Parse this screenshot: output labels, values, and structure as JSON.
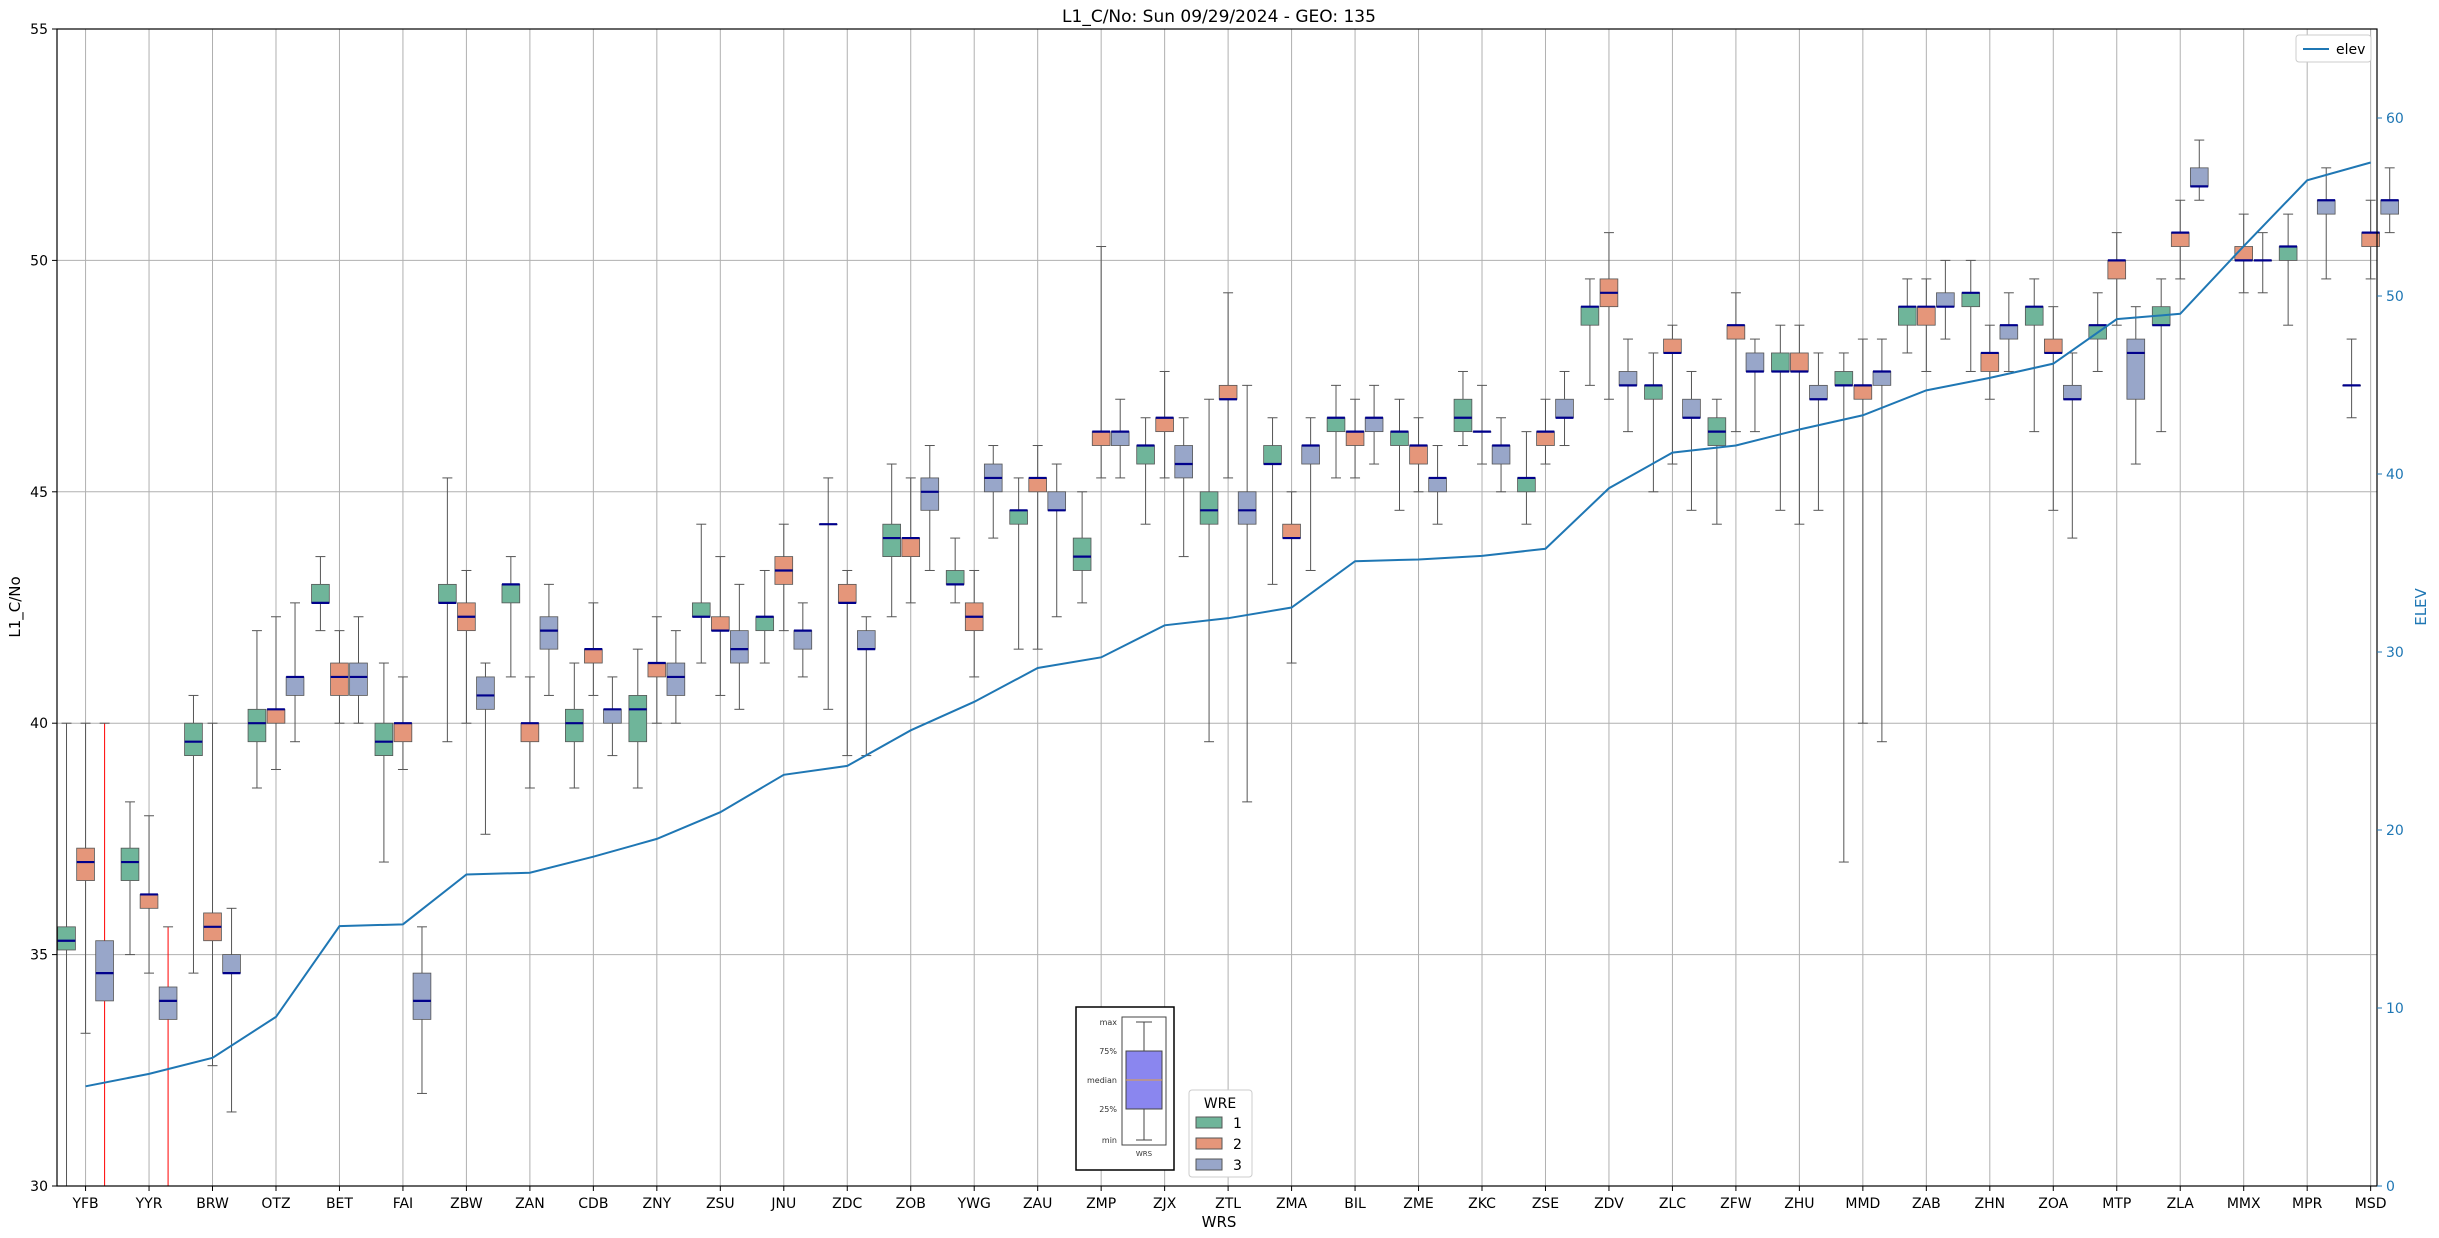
{
  "chart_data": {
    "type": "box",
    "title": "L1_C/No: Sun 09/29/2024 - GEO: 135",
    "xlabel": "WRS",
    "ylabel": "L1_C/No",
    "y2label": "ELEV",
    "ylim": [
      30,
      55
    ],
    "y2lim": [
      0,
      65
    ],
    "yticks": [
      30,
      35,
      40,
      45,
      50,
      55
    ],
    "y2ticks": [
      0,
      10,
      20,
      30,
      40,
      50,
      60
    ],
    "grid": true,
    "categories": [
      "YFB",
      "YYR",
      "BRW",
      "OTZ",
      "BET",
      "FAI",
      "ZBW",
      "ZAN",
      "CDB",
      "ZNY",
      "ZSU",
      "JNU",
      "ZDC",
      "ZOB",
      "YWG",
      "ZAU",
      "ZMP",
      "ZJX",
      "ZTL",
      "ZMA",
      "BIL",
      "ZME",
      "ZKC",
      "ZSE",
      "ZDV",
      "ZLC",
      "ZFW",
      "ZHU",
      "MMD",
      "ZAB",
      "ZHN",
      "ZOA",
      "MTP",
      "ZLA",
      "MMX",
      "MPR",
      "MSD"
    ],
    "wre_legend": {
      "title": "WRE",
      "entries": [
        {
          "label": "1",
          "color": "#6fb59a"
        },
        {
          "label": "2",
          "color": "#e5967a"
        },
        {
          "label": "3",
          "color": "#98a6c9"
        }
      ]
    },
    "elev_legend": {
      "label": "elev",
      "color": "#1f77b4"
    },
    "key_inset": {
      "labels": [
        "max",
        "75%",
        "median",
        "25%",
        "min"
      ],
      "xlabel": "WRS"
    },
    "elev": [
      5.6,
      6.3,
      7.2,
      9.5,
      14.6,
      14.7,
      17.5,
      17.6,
      18.5,
      19.5,
      21.0,
      23.1,
      23.6,
      25.6,
      27.2,
      29.1,
      29.7,
      31.5,
      31.9,
      32.5,
      35.1,
      35.2,
      35.4,
      35.8,
      39.2,
      41.2,
      41.6,
      42.5,
      43.3,
      44.7,
      45.4,
      46.2,
      48.7,
      49.0,
      52.8,
      56.5,
      57.5
    ],
    "boxes": [
      {
        "wrs": "YFB",
        "wre": 1,
        "min": 30.0,
        "q1": 35.1,
        "median": 35.3,
        "q3": 35.6,
        "max": 40.0
      },
      {
        "wrs": "YFB",
        "wre": 2,
        "min": 33.3,
        "q1": 36.6,
        "median": 37.0,
        "q3": 37.3,
        "max": 40.0
      },
      {
        "wrs": "YFB",
        "wre": 3,
        "min": 30.0,
        "q1": 34.0,
        "median": 34.6,
        "q3": 35.3,
        "max": 40.0,
        "whisker": "#ff0000"
      },
      {
        "wrs": "YYR",
        "wre": 1,
        "min": 35.0,
        "q1": 36.6,
        "median": 37.0,
        "q3": 37.3,
        "max": 38.3
      },
      {
        "wrs": "YYR",
        "wre": 2,
        "min": 34.6,
        "q1": 36.0,
        "median": 36.3,
        "q3": 36.3,
        "max": 38.0
      },
      {
        "wrs": "YYR",
        "wre": 3,
        "min": 30.0,
        "q1": 33.6,
        "median": 34.0,
        "q3": 34.3,
        "max": 35.6,
        "whisker": "#ff0000"
      },
      {
        "wrs": "BRW",
        "wre": 1,
        "min": 34.6,
        "q1": 39.3,
        "median": 39.6,
        "q3": 40.0,
        "max": 40.6
      },
      {
        "wrs": "BRW",
        "wre": 2,
        "min": 32.6,
        "q1": 35.3,
        "median": 35.6,
        "q3": 35.9,
        "max": 40.0
      },
      {
        "wrs": "BRW",
        "wre": 3,
        "min": 31.6,
        "q1": 34.6,
        "median": 34.6,
        "q3": 35.0,
        "max": 36.0
      },
      {
        "wrs": "OTZ",
        "wre": 1,
        "min": 38.6,
        "q1": 39.6,
        "median": 40.0,
        "q3": 40.3,
        "max": 42.0
      },
      {
        "wrs": "OTZ",
        "wre": 2,
        "min": 39.0,
        "q1": 40.0,
        "median": 40.3,
        "q3": 40.3,
        "max": 42.3
      },
      {
        "wrs": "OTZ",
        "wre": 3,
        "min": 39.6,
        "q1": 40.6,
        "median": 41.0,
        "q3": 41.0,
        "max": 42.6
      },
      {
        "wrs": "BET",
        "wre": 1,
        "min": 42.0,
        "q1": 42.6,
        "median": 42.6,
        "q3": 43.0,
        "max": 43.6
      },
      {
        "wrs": "BET",
        "wre": 2,
        "min": 40.0,
        "q1": 40.6,
        "median": 41.0,
        "q3": 41.3,
        "max": 42.0
      },
      {
        "wrs": "BET",
        "wre": 3,
        "min": 40.0,
        "q1": 40.6,
        "median": 41.0,
        "q3": 41.3,
        "max": 42.3
      },
      {
        "wrs": "FAI",
        "wre": 1,
        "min": 37.0,
        "q1": 39.3,
        "median": 39.6,
        "q3": 40.0,
        "max": 41.3
      },
      {
        "wrs": "FAI",
        "wre": 2,
        "min": 39.0,
        "q1": 39.6,
        "median": 40.0,
        "q3": 40.0,
        "max": 41.0
      },
      {
        "wrs": "FAI",
        "wre": 3,
        "min": 32.0,
        "q1": 33.6,
        "median": 34.0,
        "q3": 34.6,
        "max": 35.6
      },
      {
        "wrs": "ZBW",
        "wre": 1,
        "min": 39.6,
        "q1": 42.6,
        "median": 42.6,
        "q3": 43.0,
        "max": 45.3
      },
      {
        "wrs": "ZBW",
        "wre": 2,
        "min": 40.0,
        "q1": 42.0,
        "median": 42.3,
        "q3": 42.6,
        "max": 43.3
      },
      {
        "wrs": "ZBW",
        "wre": 3,
        "min": 37.6,
        "q1": 40.3,
        "median": 40.6,
        "q3": 41.0,
        "max": 41.3
      },
      {
        "wrs": "ZAN",
        "wre": 1,
        "min": 41.0,
        "q1": 42.6,
        "median": 43.0,
        "q3": 43.0,
        "max": 43.6
      },
      {
        "wrs": "ZAN",
        "wre": 2,
        "min": 38.6,
        "q1": 39.6,
        "median": 40.0,
        "q3": 40.0,
        "max": 41.0
      },
      {
        "wrs": "ZAN",
        "wre": 3,
        "min": 40.6,
        "q1": 41.6,
        "median": 42.0,
        "q3": 42.3,
        "max": 43.0
      },
      {
        "wrs": "CDB",
        "wre": 1,
        "min": 38.6,
        "q1": 39.6,
        "median": 40.0,
        "q3": 40.3,
        "max": 41.3
      },
      {
        "wrs": "CDB",
        "wre": 2,
        "min": 40.6,
        "q1": 41.3,
        "median": 41.6,
        "q3": 41.6,
        "max": 42.6
      },
      {
        "wrs": "CDB",
        "wre": 3,
        "min": 39.3,
        "q1": 40.0,
        "median": 40.3,
        "q3": 40.3,
        "max": 41.0
      },
      {
        "wrs": "ZNY",
        "wre": 1,
        "min": 38.6,
        "q1": 39.6,
        "median": 40.3,
        "q3": 40.6,
        "max": 41.6
      },
      {
        "wrs": "ZNY",
        "wre": 2,
        "min": 40.0,
        "q1": 41.0,
        "median": 41.3,
        "q3": 41.3,
        "max": 42.3
      },
      {
        "wrs": "ZNY",
        "wre": 3,
        "min": 40.0,
        "q1": 40.6,
        "median": 41.0,
        "q3": 41.3,
        "max": 42.0
      },
      {
        "wrs": "ZSU",
        "wre": 1,
        "min": 41.3,
        "q1": 42.3,
        "median": 42.3,
        "q3": 42.6,
        "max": 44.3
      },
      {
        "wrs": "ZSU",
        "wre": 2,
        "min": 40.6,
        "q1": 42.0,
        "median": 42.0,
        "q3": 42.3,
        "max": 43.6
      },
      {
        "wrs": "ZSU",
        "wre": 3,
        "min": 40.3,
        "q1": 41.3,
        "median": 41.6,
        "q3": 42.0,
        "max": 43.0
      },
      {
        "wrs": "JNU",
        "wre": 1,
        "min": 41.3,
        "q1": 42.0,
        "median": 42.3,
        "q3": 42.3,
        "max": 43.3
      },
      {
        "wrs": "JNU",
        "wre": 2,
        "min": 42.0,
        "q1": 43.0,
        "median": 43.3,
        "q3": 43.6,
        "max": 44.3
      },
      {
        "wrs": "JNU",
        "wre": 3,
        "min": 41.0,
        "q1": 41.6,
        "median": 42.0,
        "q3": 42.0,
        "max": 42.6
      },
      {
        "wrs": "ZDC",
        "wre": 1,
        "min": 40.3,
        "q1": 44.3,
        "median": 44.3,
        "q3": 44.3,
        "max": 45.3
      },
      {
        "wrs": "ZDC",
        "wre": 2,
        "min": 39.3,
        "q1": 42.6,
        "median": 42.6,
        "q3": 43.0,
        "max": 43.3
      },
      {
        "wrs": "ZDC",
        "wre": 3,
        "min": 39.3,
        "q1": 41.6,
        "median": 41.6,
        "q3": 42.0,
        "max": 42.3
      },
      {
        "wrs": "ZOB",
        "wre": 1,
        "min": 42.3,
        "q1": 43.6,
        "median": 44.0,
        "q3": 44.3,
        "max": 45.6
      },
      {
        "wrs": "ZOB",
        "wre": 2,
        "min": 42.6,
        "q1": 43.6,
        "median": 44.0,
        "q3": 44.0,
        "max": 45.3
      },
      {
        "wrs": "ZOB",
        "wre": 3,
        "min": 43.3,
        "q1": 44.6,
        "median": 45.0,
        "q3": 45.3,
        "max": 46.0
      },
      {
        "wrs": "YWG",
        "wre": 1,
        "min": 42.6,
        "q1": 43.0,
        "median": 43.0,
        "q3": 43.3,
        "max": 44.0
      },
      {
        "wrs": "YWG",
        "wre": 2,
        "min": 41.0,
        "q1": 42.0,
        "median": 42.3,
        "q3": 42.6,
        "max": 43.3
      },
      {
        "wrs": "YWG",
        "wre": 3,
        "min": 44.0,
        "q1": 45.0,
        "median": 45.3,
        "q3": 45.6,
        "max": 46.0
      },
      {
        "wrs": "ZAU",
        "wre": 1,
        "min": 41.6,
        "q1": 44.3,
        "median": 44.6,
        "q3": 44.6,
        "max": 45.3
      },
      {
        "wrs": "ZAU",
        "wre": 2,
        "min": 41.6,
        "q1": 45.0,
        "median": 45.3,
        "q3": 45.3,
        "max": 46.0
      },
      {
        "wrs": "ZAU",
        "wre": 3,
        "min": 42.3,
        "q1": 44.6,
        "median": 44.6,
        "q3": 45.0,
        "max": 45.6
      },
      {
        "wrs": "ZMP",
        "wre": 1,
        "min": 42.6,
        "q1": 43.3,
        "median": 43.6,
        "q3": 44.0,
        "max": 45.0
      },
      {
        "wrs": "ZMP",
        "wre": 2,
        "min": 45.3,
        "q1": 46.0,
        "median": 46.3,
        "q3": 46.3,
        "max": 50.3
      },
      {
        "wrs": "ZMP",
        "wre": 3,
        "min": 45.3,
        "q1": 46.0,
        "median": 46.3,
        "q3": 46.3,
        "max": 47.0
      },
      {
        "wrs": "ZJX",
        "wre": 1,
        "min": 44.3,
        "q1": 45.6,
        "median": 46.0,
        "q3": 46.0,
        "max": 46.6
      },
      {
        "wrs": "ZJX",
        "wre": 2,
        "min": 45.3,
        "q1": 46.3,
        "median": 46.6,
        "q3": 46.6,
        "max": 47.6
      },
      {
        "wrs": "ZJX",
        "wre": 3,
        "min": 43.6,
        "q1": 45.3,
        "median": 45.6,
        "q3": 46.0,
        "max": 46.6
      },
      {
        "wrs": "ZTL",
        "wre": 1,
        "min": 39.6,
        "q1": 44.3,
        "median": 44.6,
        "q3": 45.0,
        "max": 47.0
      },
      {
        "wrs": "ZTL",
        "wre": 2,
        "min": 45.3,
        "q1": 47.0,
        "median": 47.0,
        "q3": 47.3,
        "max": 49.3
      },
      {
        "wrs": "ZTL",
        "wre": 3,
        "min": 38.3,
        "q1": 44.3,
        "median": 44.6,
        "q3": 45.0,
        "max": 47.3
      },
      {
        "wrs": "ZMA",
        "wre": 1,
        "min": 43.0,
        "q1": 45.6,
        "median": 45.6,
        "q3": 46.0,
        "max": 46.6
      },
      {
        "wrs": "ZMA",
        "wre": 2,
        "min": 41.3,
        "q1": 44.0,
        "median": 44.0,
        "q3": 44.3,
        "max": 45.0
      },
      {
        "wrs": "ZMA",
        "wre": 3,
        "min": 43.3,
        "q1": 45.6,
        "median": 46.0,
        "q3": 46.0,
        "max": 46.6
      },
      {
        "wrs": "BIL",
        "wre": 1,
        "min": 45.3,
        "q1": 46.3,
        "median": 46.6,
        "q3": 46.6,
        "max": 47.3
      },
      {
        "wrs": "BIL",
        "wre": 2,
        "min": 45.3,
        "q1": 46.0,
        "median": 46.3,
        "q3": 46.3,
        "max": 47.0
      },
      {
        "wrs": "BIL",
        "wre": 3,
        "min": 45.6,
        "q1": 46.3,
        "median": 46.6,
        "q3": 46.6,
        "max": 47.3
      },
      {
        "wrs": "ZME",
        "wre": 1,
        "min": 44.6,
        "q1": 46.0,
        "median": 46.3,
        "q3": 46.3,
        "max": 47.0
      },
      {
        "wrs": "ZME",
        "wre": 2,
        "min": 45.0,
        "q1": 45.6,
        "median": 46.0,
        "q3": 46.0,
        "max": 46.6
      },
      {
        "wrs": "ZME",
        "wre": 3,
        "min": 44.3,
        "q1": 45.0,
        "median": 45.3,
        "q3": 45.3,
        "max": 46.0
      },
      {
        "wrs": "ZKC",
        "wre": 1,
        "min": 46.0,
        "q1": 46.3,
        "median": 46.6,
        "q3": 47.0,
        "max": 47.6
      },
      {
        "wrs": "ZKC",
        "wre": 2,
        "min": 45.6,
        "q1": 46.3,
        "median": 46.3,
        "q3": 46.3,
        "max": 47.3
      },
      {
        "wrs": "ZKC",
        "wre": 3,
        "min": 45.0,
        "q1": 45.6,
        "median": 46.0,
        "q3": 46.0,
        "max": 46.6
      },
      {
        "wrs": "ZSE",
        "wre": 1,
        "min": 44.3,
        "q1": 45.0,
        "median": 45.3,
        "q3": 45.3,
        "max": 46.3
      },
      {
        "wrs": "ZSE",
        "wre": 2,
        "min": 45.6,
        "q1": 46.0,
        "median": 46.3,
        "q3": 46.3,
        "max": 47.0
      },
      {
        "wrs": "ZSE",
        "wre": 3,
        "min": 46.0,
        "q1": 46.6,
        "median": 46.6,
        "q3": 47.0,
        "max": 47.6
      },
      {
        "wrs": "ZDV",
        "wre": 1,
        "min": 47.3,
        "q1": 48.6,
        "median": 49.0,
        "q3": 49.0,
        "max": 49.6
      },
      {
        "wrs": "ZDV",
        "wre": 2,
        "min": 47.0,
        "q1": 49.0,
        "median": 49.3,
        "q3": 49.6,
        "max": 50.6
      },
      {
        "wrs": "ZDV",
        "wre": 3,
        "min": 46.3,
        "q1": 47.3,
        "median": 47.3,
        "q3": 47.6,
        "max": 48.3
      },
      {
        "wrs": "ZLC",
        "wre": 1,
        "min": 45.0,
        "q1": 47.0,
        "median": 47.3,
        "q3": 47.3,
        "max": 48.0
      },
      {
        "wrs": "ZLC",
        "wre": 2,
        "min": 45.6,
        "q1": 48.0,
        "median": 48.0,
        "q3": 48.3,
        "max": 48.6
      },
      {
        "wrs": "ZLC",
        "wre": 3,
        "min": 44.6,
        "q1": 46.6,
        "median": 46.6,
        "q3": 47.0,
        "max": 47.6
      },
      {
        "wrs": "ZFW",
        "wre": 1,
        "min": 44.3,
        "q1": 46.0,
        "median": 46.3,
        "q3": 46.6,
        "max": 47.0
      },
      {
        "wrs": "ZFW",
        "wre": 2,
        "min": 46.3,
        "q1": 48.3,
        "median": 48.6,
        "q3": 48.6,
        "max": 49.3
      },
      {
        "wrs": "ZFW",
        "wre": 3,
        "min": 46.3,
        "q1": 47.6,
        "median": 47.6,
        "q3": 48.0,
        "max": 48.3
      },
      {
        "wrs": "ZHU",
        "wre": 1,
        "min": 44.6,
        "q1": 47.6,
        "median": 47.6,
        "q3": 48.0,
        "max": 48.6
      },
      {
        "wrs": "ZHU",
        "wre": 2,
        "min": 44.3,
        "q1": 47.6,
        "median": 47.6,
        "q3": 48.0,
        "max": 48.6
      },
      {
        "wrs": "ZHU",
        "wre": 3,
        "min": 44.6,
        "q1": 47.0,
        "median": 47.0,
        "q3": 47.3,
        "max": 48.0
      },
      {
        "wrs": "MMD",
        "wre": 1,
        "min": 37.0,
        "q1": 47.3,
        "median": 47.3,
        "q3": 47.6,
        "max": 48.0
      },
      {
        "wrs": "MMD",
        "wre": 2,
        "min": 40.0,
        "q1": 47.0,
        "median": 47.3,
        "q3": 47.3,
        "max": 48.3
      },
      {
        "wrs": "MMD",
        "wre": 3,
        "min": 39.6,
        "q1": 47.3,
        "median": 47.6,
        "q3": 47.6,
        "max": 48.3
      },
      {
        "wrs": "ZAB",
        "wre": 1,
        "min": 48.0,
        "q1": 48.6,
        "median": 49.0,
        "q3": 49.0,
        "max": 49.6
      },
      {
        "wrs": "ZAB",
        "wre": 2,
        "min": 47.6,
        "q1": 48.6,
        "median": 49.0,
        "q3": 49.0,
        "max": 49.6
      },
      {
        "wrs": "ZAB",
        "wre": 3,
        "min": 48.3,
        "q1": 49.0,
        "median": 49.0,
        "q3": 49.3,
        "max": 50.0
      },
      {
        "wrs": "ZHN",
        "wre": 1,
        "min": 47.6,
        "q1": 49.0,
        "median": 49.3,
        "q3": 49.3,
        "max": 50.0
      },
      {
        "wrs": "ZHN",
        "wre": 2,
        "min": 47.0,
        "q1": 47.6,
        "median": 48.0,
        "q3": 48.0,
        "max": 48.6
      },
      {
        "wrs": "ZHN",
        "wre": 3,
        "min": 47.6,
        "q1": 48.3,
        "median": 48.6,
        "q3": 48.6,
        "max": 49.3
      },
      {
        "wrs": "ZOA",
        "wre": 1,
        "min": 46.3,
        "q1": 48.6,
        "median": 49.0,
        "q3": 49.0,
        "max": 49.6
      },
      {
        "wrs": "ZOA",
        "wre": 2,
        "min": 44.6,
        "q1": 48.0,
        "median": 48.0,
        "q3": 48.3,
        "max": 49.0
      },
      {
        "wrs": "ZOA",
        "wre": 3,
        "min": 44.0,
        "q1": 47.0,
        "median": 47.0,
        "q3": 47.3,
        "max": 48.0
      },
      {
        "wrs": "MTP",
        "wre": 1,
        "min": 47.6,
        "q1": 48.3,
        "median": 48.6,
        "q3": 48.6,
        "max": 49.3
      },
      {
        "wrs": "MTP",
        "wre": 2,
        "min": 48.6,
        "q1": 49.6,
        "median": 50.0,
        "q3": 50.0,
        "max": 50.6
      },
      {
        "wrs": "MTP",
        "wre": 3,
        "min": 45.6,
        "q1": 47.0,
        "median": 48.0,
        "q3": 48.3,
        "max": 49.0
      },
      {
        "wrs": "ZLA",
        "wre": 1,
        "min": 46.3,
        "q1": 48.6,
        "median": 48.6,
        "q3": 49.0,
        "max": 49.6
      },
      {
        "wrs": "ZLA",
        "wre": 2,
        "min": 49.6,
        "q1": 50.3,
        "median": 50.6,
        "q3": 50.6,
        "max": 51.3
      },
      {
        "wrs": "ZLA",
        "wre": 3,
        "min": 51.3,
        "q1": 51.6,
        "median": 51.6,
        "q3": 52.0,
        "max": 52.6
      },
      {
        "wrs": "MMX",
        "wre": 1,
        "min": null,
        "q1": null,
        "median": null,
        "q3": null,
        "max": null
      },
      {
        "wrs": "MMX",
        "wre": 2,
        "min": 49.3,
        "q1": 50.0,
        "median": 50.0,
        "q3": 50.3,
        "max": 51.0
      },
      {
        "wrs": "MMX",
        "wre": 3,
        "min": 49.3,
        "q1": 50.0,
        "median": 50.0,
        "q3": 50.0,
        "max": 50.6
      },
      {
        "wrs": "MPR",
        "wre": 1,
        "min": 48.6,
        "q1": 50.0,
        "median": 50.3,
        "q3": 50.3,
        "max": 51.0
      },
      {
        "wrs": "MPR",
        "wre": 2,
        "min": null,
        "q1": null,
        "median": null,
        "q3": null,
        "max": null
      },
      {
        "wrs": "MPR",
        "wre": 3,
        "min": 49.6,
        "q1": 51.0,
        "median": 51.3,
        "q3": 51.3,
        "max": 52.0
      },
      {
        "wrs": "MSD",
        "wre": 1,
        "min": 46.6,
        "q1": 47.3,
        "median": 47.3,
        "q3": 47.3,
        "max": 48.3
      },
      {
        "wrs": "MSD",
        "wre": 2,
        "min": 49.6,
        "q1": 50.3,
        "median": 50.6,
        "q3": 50.6,
        "max": 51.3
      },
      {
        "wrs": "MSD",
        "wre": 3,
        "min": 50.6,
        "q1": 51.0,
        "median": 51.3,
        "q3": 51.3,
        "max": 52.0
      }
    ]
  }
}
